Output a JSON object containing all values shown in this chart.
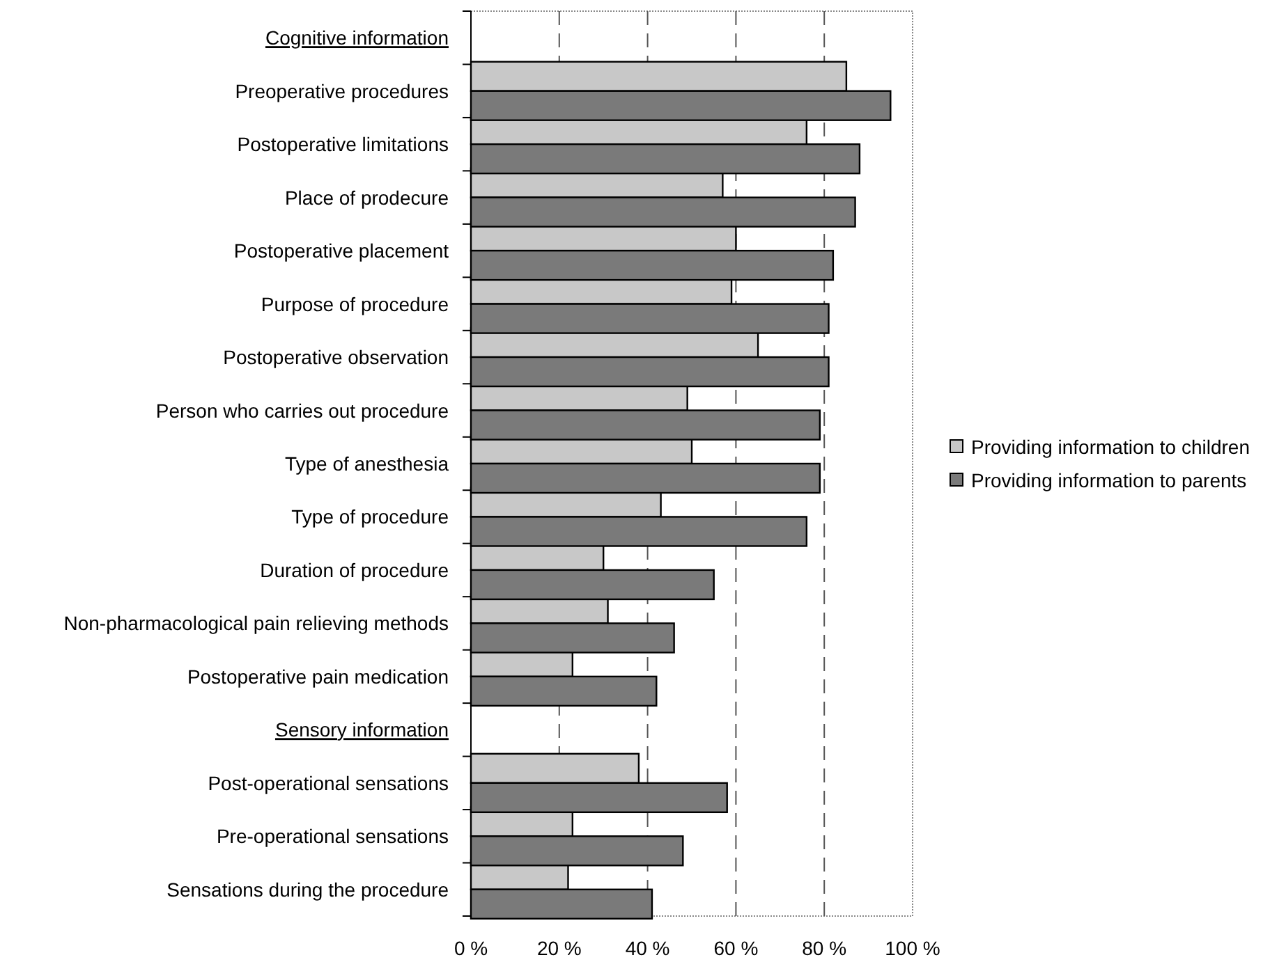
{
  "chart_data": {
    "type": "bar",
    "orientation": "horizontal",
    "categories": [
      "Cognitive information",
      "Preoperative procedures",
      "Postoperative limitations",
      "Place of prodecure",
      "Postoperative placement",
      "Purpose of procedure",
      "Postoperative observation",
      "Person who carries out procedure",
      "Type of anesthesia",
      "Type of procedure",
      "Duration of procedure",
      "Non-pharmacological pain relieving methods",
      "Postoperative pain medication",
      "Sensory information",
      "Post-operational sensations",
      "Pre-operational sensations",
      "Sensations during the procedure"
    ],
    "series": [
      {
        "name": "Providing information to children",
        "color": "#c8c8c8",
        "values": [
          null,
          85,
          76,
          57,
          60,
          59,
          65,
          49,
          50,
          43,
          30,
          31,
          23,
          null,
          38,
          23,
          22
        ]
      },
      {
        "name": "Providing information to parents",
        "color": "#7a7a7a",
        "values": [
          null,
          95,
          88,
          87,
          82,
          81,
          81,
          79,
          79,
          76,
          55,
          46,
          42,
          null,
          58,
          48,
          41
        ]
      }
    ],
    "xlim": [
      0,
      100
    ],
    "xticks": [
      {
        "value": 0,
        "label": "0 %"
      },
      {
        "value": 20,
        "label": "20 %"
      },
      {
        "value": 40,
        "label": "40 %"
      },
      {
        "value": 60,
        "label": "60 %"
      },
      {
        "value": 80,
        "label": "80 %"
      },
      {
        "value": 100,
        "label": "100 %"
      }
    ],
    "grid": "x",
    "legend": "right"
  }
}
